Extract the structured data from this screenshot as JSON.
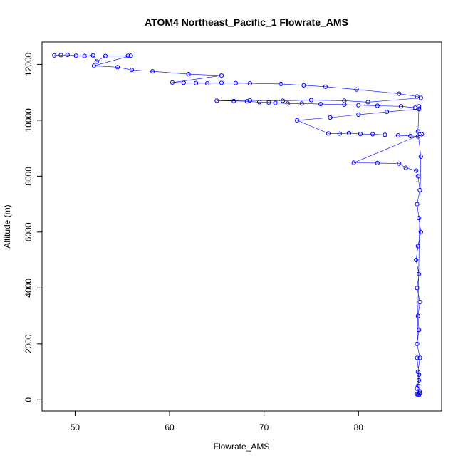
{
  "chart_data": {
    "type": "scatter",
    "title": "ATOM4 Northeast_Pacific_1 Flowrate_AMS",
    "xlabel": "Flowrate_AMS",
    "ylabel": "Altitude (m)",
    "xlim": [
      46.5,
      88.8
    ],
    "ylim": [
      -400,
      12800
    ],
    "x_ticks": [
      50,
      60,
      70,
      80
    ],
    "y_ticks": [
      0,
      2000,
      4000,
      6000,
      8000,
      10000,
      12000
    ],
    "grid": false,
    "legend": "none",
    "series_color": "#0000ff",
    "marker": "open-circle",
    "connected": true,
    "series": [
      {
        "x": [
          47.8,
          48.5,
          49.2,
          50.1,
          51.0,
          51.9,
          52.3,
          53.2,
          55.6,
          55.9,
          52.0,
          54.5,
          56.0,
          58.2,
          62.0,
          65.5,
          60.3,
          61.5,
          62.8,
          64.0,
          65.5,
          67.0,
          68.5,
          71.8,
          74.2,
          76.5,
          79.8,
          84.3,
          86.2,
          86.6,
          81.0,
          78.5,
          75.0,
          72.0,
          68.5,
          65.0,
          66.8,
          68.2,
          69.5,
          70.5,
          71.2,
          72.5,
          74.0,
          76.0,
          78.5,
          80.0,
          82.0,
          84.5,
          86.0,
          86.4,
          83.0,
          80.0,
          77.0,
          73.5,
          76.8,
          78.0,
          79.0,
          80.2,
          81.5,
          82.8,
          84.2,
          85.5,
          86.3,
          86.7,
          79.5,
          82.0,
          84.3,
          85.0,
          86.1,
          86.3,
          86.5,
          86.2,
          86.4,
          86.6,
          86.3,
          86.1,
          86.4,
          86.2,
          86.5,
          86.3,
          86.4,
          86.2,
          86.5,
          86.3,
          86.4,
          86.2,
          86.5,
          86.3,
          86.4,
          86.2,
          86.5,
          86.3,
          86.4,
          86.2,
          86.6,
          86.3,
          86.4
        ],
        "y": [
          12320,
          12330,
          12340,
          12310,
          12300,
          12320,
          12100,
          12300,
          12310,
          12310,
          11950,
          11900,
          11800,
          11750,
          11650,
          11600,
          11350,
          11340,
          11330,
          11320,
          11340,
          11330,
          11320,
          11300,
          11250,
          11200,
          11100,
          10950,
          10850,
          10800,
          10650,
          10700,
          10720,
          10700,
          10710,
          10700,
          10690,
          10680,
          10650,
          10640,
          10620,
          10600,
          10600,
          10580,
          10560,
          10540,
          10520,
          10500,
          10450,
          10400,
          10300,
          10200,
          10100,
          10000,
          9530,
          9520,
          9540,
          9510,
          9500,
          9480,
          9460,
          9440,
          9420,
          9500,
          8480,
          8470,
          8450,
          8300,
          8200,
          8000,
          7500,
          7000,
          6500,
          6000,
          5500,
          5000,
          4500,
          4000,
          3500,
          3000,
          2500,
          2000,
          1500,
          1000,
          700,
          400,
          250,
          180,
          170,
          200,
          300,
          500,
          900,
          1500,
          8700,
          9600,
          10500
        ]
      }
    ]
  }
}
